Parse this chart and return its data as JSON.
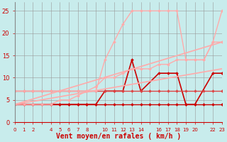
{
  "bg_color": "#c8ecec",
  "grid_color": "#999999",
  "xlabel": "Vent moyen/en rafales ( km/h )",
  "xlabel_color": "#cc0000",
  "xlabel_fontsize": 7,
  "yticks": [
    0,
    5,
    10,
    15,
    20,
    25
  ],
  "ytick_labels": [
    "0",
    "5",
    "10",
    "15",
    "20",
    "25"
  ],
  "xtick_labels": [
    "0",
    "1",
    "2",
    "",
    "4",
    "5",
    "6",
    "7",
    "8",
    "",
    "10",
    "11",
    "12",
    "13",
    "14",
    "",
    "16",
    "17",
    "18",
    "19",
    "20",
    "",
    "22",
    "23"
  ],
  "xtick_positions": [
    0,
    1,
    2,
    3,
    4,
    5,
    6,
    7,
    8,
    9,
    10,
    11,
    12,
    13,
    14,
    15,
    16,
    17,
    18,
    19,
    20,
    21,
    22,
    23
  ],
  "xlim": [
    0,
    23
  ],
  "ylim": [
    0,
    27
  ],
  "lines": [
    {
      "x": [
        0,
        1,
        2,
        3,
        4,
        5,
        6,
        7,
        8,
        9,
        10,
        11,
        12,
        13,
        14,
        15,
        16,
        17,
        18,
        19,
        20,
        21,
        22,
        23
      ],
      "y": [
        4,
        4,
        4,
        4,
        4,
        4,
        4,
        4,
        4,
        4,
        4,
        4,
        4,
        4,
        4,
        4,
        4,
        4,
        4,
        4,
        4,
        4,
        4,
        4
      ],
      "color": "#cc0000",
      "lw": 1.0,
      "marker": "D",
      "ms": 2.0
    },
    {
      "x": [
        0,
        1,
        2,
        4,
        5,
        6,
        7,
        8,
        9,
        10,
        11,
        12,
        13,
        14,
        16,
        17,
        18,
        19,
        20,
        22,
        23
      ],
      "y": [
        4,
        4,
        4,
        4,
        4,
        4,
        4,
        4,
        4,
        7,
        7,
        7,
        14,
        7,
        11,
        11,
        11,
        4,
        4,
        11,
        11
      ],
      "color": "#cc0000",
      "lw": 1.2,
      "marker": "D",
      "ms": 2.0
    },
    {
      "x": [
        0,
        1,
        2,
        3,
        4,
        5,
        6,
        7,
        8,
        9,
        10,
        11,
        12,
        13,
        14,
        15,
        16,
        17,
        18,
        19,
        20,
        21,
        22,
        23
      ],
      "y": [
        7,
        7,
        7,
        7,
        7,
        7,
        7,
        7,
        7,
        7,
        7,
        7,
        7,
        7,
        7,
        7,
        7,
        7,
        7,
        7,
        7,
        7,
        7,
        7
      ],
      "color": "#dd4444",
      "lw": 1.0,
      "marker": "D",
      "ms": 2.0
    },
    {
      "x": [
        0,
        23
      ],
      "y": [
        4,
        12
      ],
      "color": "#ffaaaa",
      "lw": 1.2,
      "marker": null,
      "ms": 0
    },
    {
      "x": [
        0,
        23
      ],
      "y": [
        4,
        18
      ],
      "color": "#ffaaaa",
      "lw": 1.2,
      "marker": null,
      "ms": 0
    },
    {
      "x": [
        0,
        1,
        2,
        3,
        4,
        5,
        6,
        7,
        8,
        9,
        10,
        11,
        12,
        13,
        14,
        15,
        16,
        17,
        18,
        19,
        20,
        21,
        22,
        23
      ],
      "y": [
        4,
        4,
        4,
        4,
        4,
        5,
        5,
        6,
        7,
        7,
        14,
        18,
        22,
        25,
        25,
        25,
        25,
        25,
        25,
        14,
        14,
        14,
        18,
        25
      ],
      "color": "#ffaaaa",
      "lw": 1.0,
      "marker": "D",
      "ms": 2.0
    },
    {
      "x": [
        0,
        1,
        2,
        3,
        4,
        5,
        6,
        7,
        8,
        9,
        10,
        11,
        12,
        13,
        14,
        15,
        16,
        17,
        18,
        19,
        20,
        21,
        22,
        23
      ],
      "y": [
        7,
        7,
        7,
        7,
        7,
        7,
        7,
        7,
        7,
        8,
        10,
        10,
        11,
        12,
        12,
        12,
        13,
        13,
        14,
        14,
        14,
        14,
        18,
        18
      ],
      "color": "#ffaaaa",
      "lw": 1.0,
      "marker": "D",
      "ms": 2.0
    }
  ],
  "arrow_symbols": true
}
